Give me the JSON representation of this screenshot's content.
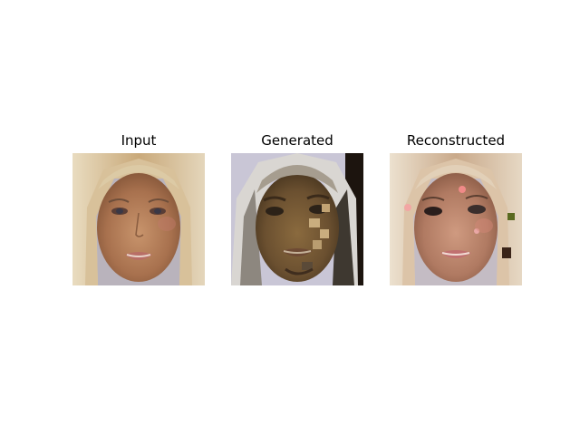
{
  "panels": [
    {
      "title": "Input"
    },
    {
      "title": "Generated"
    },
    {
      "title": "Reconstructed"
    }
  ],
  "colors": {
    "background": "#ffffff",
    "title_text": "#000000"
  }
}
